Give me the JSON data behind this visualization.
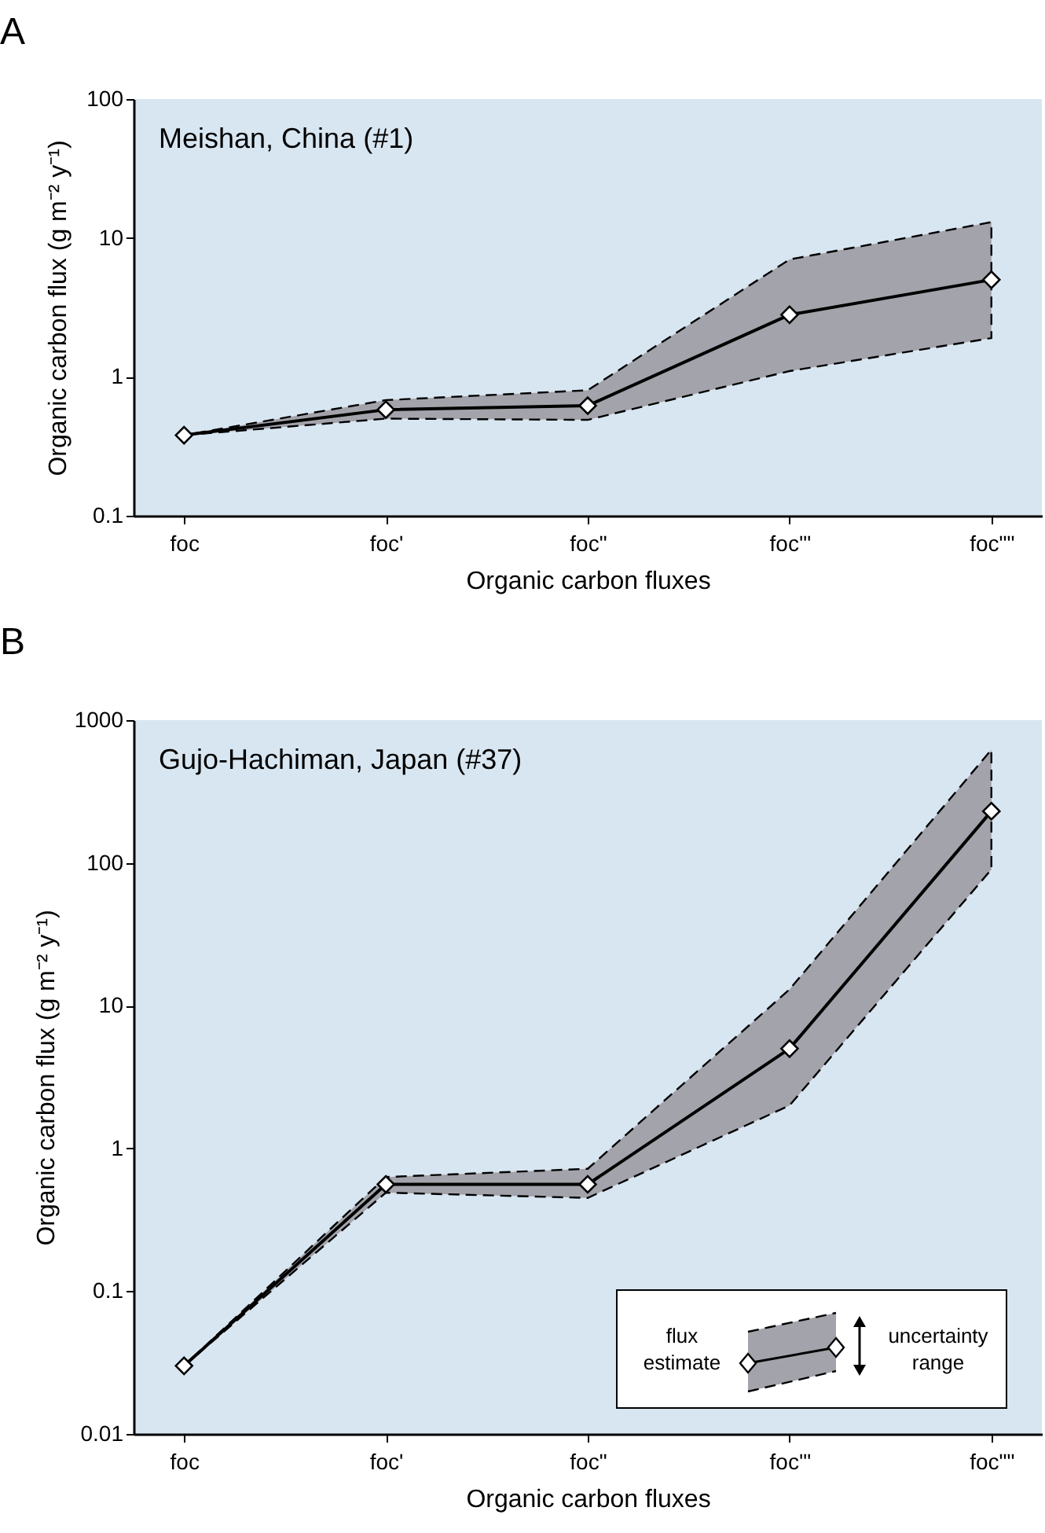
{
  "chart_data": [
    {
      "type": "line",
      "title": "A",
      "categories": [
        "foc",
        "foc'",
        "foc\"",
        "foc'\"",
        "foc\"\""
      ],
      "series": [
        {
          "color": "#000000",
          "values": [
            0.38,
            0.58,
            0.62,
            2.8,
            5
          ],
          "lower": [
            0.38,
            0.5,
            0.49,
            1.1,
            1.9
          ],
          "upper": [
            0.38,
            0.68,
            0.8,
            7,
            13
          ]
        }
      ],
      "ylim": [
        0.1,
        100
      ],
      "yticks": [
        0.1,
        1,
        10,
        100
      ],
      "log": "y",
      "grid": false,
      "marker": "diamond",
      "line_style": "solid",
      "xlabel": "Organic carbon fluxes",
      "ylabel": "Organic carbon flux  (g m⁻² y⁻¹)",
      "annotations": [
        "Meishan, China  (#1)"
      ]
    },
    {
      "type": "line",
      "title": "B",
      "categories": [
        "foc",
        "foc'",
        "foc\"",
        "foc'\"",
        "foc\"\""
      ],
      "series": [
        {
          "color": "#000000",
          "values": [
            0.03,
            0.56,
            0.56,
            5,
            230
          ],
          "lower": [
            0.03,
            0.49,
            0.45,
            2,
            90
          ],
          "upper": [
            0.03,
            0.63,
            0.72,
            13,
            620
          ]
        }
      ],
      "ylim": [
        0.01,
        1000
      ],
      "yticks": [
        0.01,
        0.1,
        1,
        10,
        100,
        1000
      ],
      "log": "y",
      "grid": false,
      "marker": "diamond",
      "line_style": "solid",
      "xlabel": "Organic carbon fluxes",
      "ylabel": "Organic carbon flux  (g m⁻² y⁻¹)",
      "annotations": [
        "Gujo-Hachiman, Japan  (#37)",
        "flux estimate",
        "uncertainty range"
      ]
    }
  ]
}
